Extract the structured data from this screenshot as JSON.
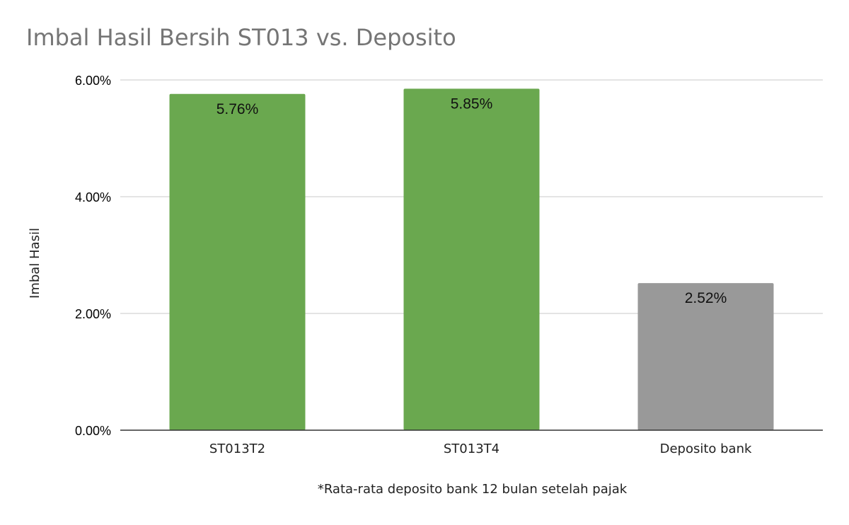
{
  "chart_data": {
    "type": "bar",
    "title": "Imbal Hasil Bersih ST013 vs. Deposito",
    "xlabel": "",
    "ylabel": "Imbal Hasil",
    "categories": [
      "ST013T2",
      "ST013T4",
      "Deposito bank"
    ],
    "values": [
      5.76,
      5.85,
      2.52
    ],
    "data_labels": [
      "5.76%",
      "5.85%",
      "2.52%"
    ],
    "bar_colors": [
      "#6aa84f",
      "#6aa84f",
      "#999999"
    ],
    "ylim": [
      0,
      6
    ],
    "yticks": [
      0,
      2,
      4,
      6
    ],
    "ytick_labels": [
      "0.00%",
      "2.00%",
      "4.00%",
      "6.00%"
    ],
    "grid": true,
    "legend": "none",
    "footnote": "*Rata-rata deposito bank 12 bulan setelah pajak"
  }
}
